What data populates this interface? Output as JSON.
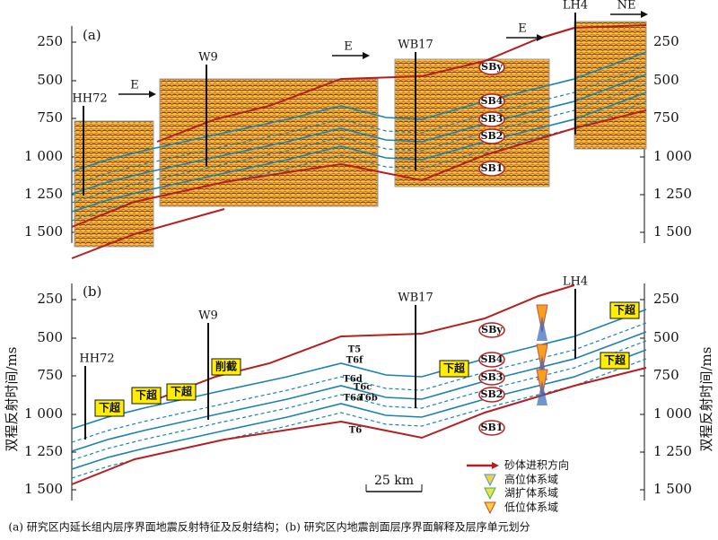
{
  "axis": {
    "title": "双程反射时间/ms",
    "ticks": [
      "250",
      "500",
      "750",
      "1 000",
      "1 250",
      "1 500"
    ]
  },
  "panel_a": {
    "label": "(a)",
    "wells": [
      "HH72",
      "W9",
      "WB17",
      "LH4"
    ],
    "directions": [
      "E",
      "E",
      "E",
      "NE"
    ],
    "boundaries": [
      "SBy",
      "SB4",
      "SB3",
      "SB2",
      "SB1"
    ]
  },
  "panel_b": {
    "label": "(b)",
    "wells": [
      "HH72",
      "W9",
      "WB17",
      "LH4"
    ],
    "boundaries": [
      "SBy",
      "SB4",
      "SB3",
      "SB2",
      "SB1"
    ],
    "horizons": [
      "T5",
      "T6f",
      "T6d",
      "T6c",
      "T6a",
      "T6b",
      "T6"
    ],
    "annotations": [
      "下超",
      "下超",
      "下超",
      "削截",
      "下超",
      "下超",
      "下超"
    ],
    "scale": "25 km"
  },
  "legend": [
    "砂体进积方向",
    "高位体系域",
    "湖扩体系域",
    "低位体系域"
  ],
  "caption": "(a) 研究区内延长组内层序界面地震反射特征及反射结构；(b) 研究区内地震剖面层序界面解释及层序单元划分"
}
